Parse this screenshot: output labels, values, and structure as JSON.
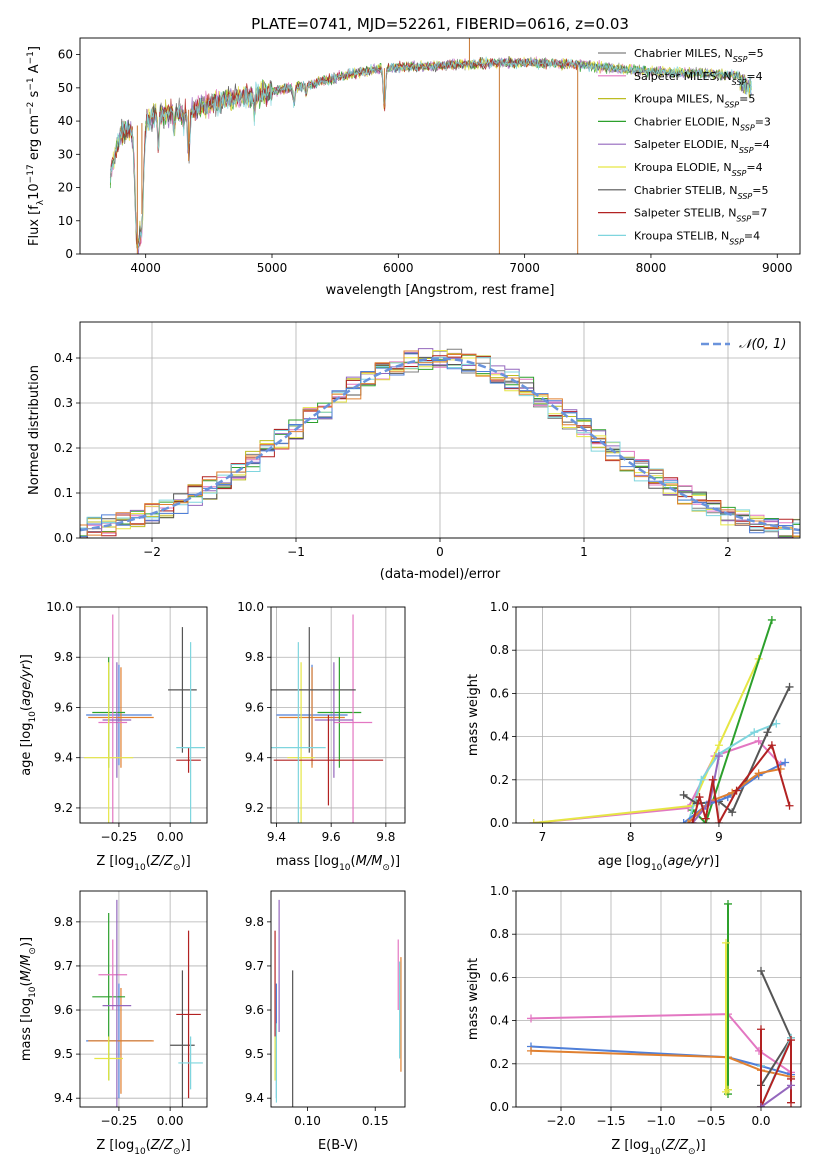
{
  "title": "PLATE=0741, MJD=52261, FIBERID=0616, z=0.03",
  "chart_data": [
    {
      "type": "line",
      "id": "spectrum",
      "title": "PLATE=0741, MJD=52261, FIBERID=0616, z=0.03",
      "xlabel": "wavelength [Angstrom, rest frame]",
      "ylabel": "Flux [fλ10⁻¹⁷ erg cm⁻² s⁻¹ A⁻¹]",
      "xlim": [
        3480,
        9180
      ],
      "ylim": [
        0,
        65
      ],
      "xticks": [
        4000,
        5000,
        6000,
        7000,
        8000,
        9000
      ],
      "yticks": [
        0,
        10,
        20,
        30,
        40,
        50,
        60
      ],
      "grid": false,
      "legend_position": "right",
      "series": [
        {
          "name": "Chabrier MILES, N_SSP=5",
          "color": "#7f7f7f"
        },
        {
          "name": "Salpeter MILES, N_SSP=4",
          "color": "#e377c2"
        },
        {
          "name": "Kroupa MILES, N_SSP=5",
          "color": "#bcbd22"
        },
        {
          "name": "Chabrier ELODIE, N_SSP=3",
          "color": "#2ca02c"
        },
        {
          "name": "Salpeter ELODIE, N_SSP=4",
          "color": "#9467bd"
        },
        {
          "name": "Kroupa ELODIE, N_SSP=4",
          "color": "#e6e645"
        },
        {
          "name": "Chabrier STELIB, N_SSP=5",
          "color": "#555555"
        },
        {
          "name": "Salpeter STELIB, N_SSP=7",
          "color": "#b22222"
        },
        {
          "name": "Kroupa STELIB, N_SSP=4",
          "color": "#7fd5de"
        }
      ],
      "continuum": {
        "x": [
          3720,
          3800,
          3900,
          4000,
          4100,
          4300,
          4500,
          4700,
          5000,
          5300,
          5600,
          5900,
          6200,
          6500,
          6800,
          7100,
          7400,
          7700,
          8000,
          8300,
          8600,
          8800
        ],
        "y": [
          24,
          36,
          38,
          40,
          42,
          43,
          45,
          47,
          49,
          51,
          54,
          56,
          56.5,
          57,
          57.5,
          57.5,
          57,
          56,
          55,
          54.5,
          54,
          53
        ]
      },
      "features": [
        {
          "x": 3934,
          "y": 0
        },
        {
          "x": 3970,
          "y": 12
        },
        {
          "x": 4340,
          "y": 28
        },
        {
          "x": 5890,
          "y": 44
        },
        {
          "x": 6800,
          "y": 0
        },
        {
          "x": 7420,
          "y": 0
        },
        {
          "x": 6563,
          "y": 65
        }
      ]
    },
    {
      "type": "histogram",
      "id": "residuals",
      "xlabel": "(data-model)/error",
      "ylabel": "Normed distribution",
      "xlim": [
        -2.5,
        2.5
      ],
      "ylim": [
        0,
        0.48
      ],
      "xticks": [
        -2,
        -1,
        0,
        1,
        2
      ],
      "yticks": [
        0.0,
        0.1,
        0.2,
        0.3,
        0.4
      ],
      "grid": true,
      "legend_position": "top-right",
      "reference_curve": {
        "name": "𝒩(0, 1)",
        "mean": 0,
        "sigma": 1,
        "color": "#6a93dc",
        "style": "dashed"
      },
      "bin_width": 0.1
    },
    {
      "type": "scatter",
      "id": "age-vs-Z",
      "xlabel": "Z [log10(Z/Z⊙)]",
      "ylabel": "age  [log10(age/yr)]",
      "xlim": [
        -0.44,
        0.18
      ],
      "ylim": [
        9.14,
        10.0
      ],
      "xticks": [
        -0.25,
        0.0
      ],
      "yticks": [
        9.2,
        9.4,
        9.6,
        9.8,
        10.0
      ],
      "grid": true,
      "points": [
        {
          "x": -0.25,
          "y": 9.57,
          "xerr": 0.16,
          "yerr": 0.2,
          "color": "#4f7fd8"
        },
        {
          "x": -0.24,
          "y": 9.56,
          "xerr": 0.16,
          "yerr": 0.2,
          "color": "#e08030"
        },
        {
          "x": -0.3,
          "y": 9.58,
          "xerr": 0.08,
          "yerr": 0.22,
          "color": "#2ca02c"
        },
        {
          "x": -0.28,
          "y": 9.54,
          "xerr": 0.07,
          "yerr": 0.43,
          "color": "#e377c2"
        },
        {
          "x": -0.26,
          "y": 9.55,
          "xerr": 0.07,
          "yerr": 0.23,
          "color": "#9467bd"
        },
        {
          "x": -0.3,
          "y": 9.4,
          "xerr": 0.12,
          "yerr": 0.38,
          "color": "#e6e645"
        },
        {
          "x": 0.06,
          "y": 9.67,
          "xerr": 0.07,
          "yerr": 0.25,
          "color": "#555555"
        },
        {
          "x": 0.09,
          "y": 9.39,
          "xerr": 0.06,
          "yerr": 0.05,
          "color": "#b22222"
        },
        {
          "x": 0.1,
          "y": 9.44,
          "xerr": 0.07,
          "yerr": 0.42,
          "color": "#7fd5de"
        }
      ]
    },
    {
      "type": "scatter",
      "id": "age-vs-mass",
      "xlabel": "mass [log10(M/M⊙)]",
      "ylabel": "",
      "xlim": [
        9.38,
        9.87
      ],
      "ylim": [
        9.14,
        10.0
      ],
      "xticks": [
        9.4,
        9.6,
        9.8
      ],
      "yticks": [
        9.2,
        9.4,
        9.6,
        9.8,
        10.0
      ],
      "grid": true,
      "points": [
        {
          "x": 9.53,
          "y": 9.57,
          "xerr": 0.13,
          "yerr": 0.2,
          "color": "#4f7fd8"
        },
        {
          "x": 9.53,
          "y": 9.56,
          "xerr": 0.12,
          "yerr": 0.2,
          "color": "#e08030"
        },
        {
          "x": 9.63,
          "y": 9.58,
          "xerr": 0.08,
          "yerr": 0.22,
          "color": "#2ca02c"
        },
        {
          "x": 9.68,
          "y": 9.54,
          "xerr": 0.07,
          "yerr": 0.43,
          "color": "#e377c2"
        },
        {
          "x": 9.61,
          "y": 9.55,
          "xerr": 0.07,
          "yerr": 0.23,
          "color": "#9467bd"
        },
        {
          "x": 9.49,
          "y": 9.4,
          "xerr": 0.05,
          "yerr": 0.38,
          "color": "#e6e645"
        },
        {
          "x": 9.52,
          "y": 9.67,
          "xerr": 0.17,
          "yerr": 0.25,
          "color": "#555555"
        },
        {
          "x": 9.59,
          "y": 9.39,
          "xerr": 0.2,
          "yerr": 0.18,
          "color": "#b22222"
        },
        {
          "x": 9.48,
          "y": 9.44,
          "xerr": 0.1,
          "yerr": 0.42,
          "color": "#7fd5de"
        }
      ]
    },
    {
      "type": "line",
      "id": "weight-vs-age",
      "xlabel": "age  [log10(age/yr)]",
      "ylabel": "mass weight",
      "xlim": [
        6.7,
        9.93
      ],
      "ylim": [
        0,
        1.0
      ],
      "xticks": [
        7,
        8,
        9
      ],
      "yticks": [
        0.0,
        0.2,
        0.4,
        0.6,
        0.8,
        1.0
      ],
      "grid": true,
      "series": [
        {
          "color": "#e377c2",
          "x": [
            6.9,
            8.65,
            8.95,
            9.45,
            9.7
          ],
          "y": [
            0.0,
            0.07,
            0.31,
            0.38,
            0.27
          ]
        },
        {
          "color": "#e6e645",
          "x": [
            6.9,
            8.7,
            9.0,
            9.45
          ],
          "y": [
            0.0,
            0.08,
            0.36,
            0.76
          ]
        },
        {
          "color": "#2ca02c",
          "x": [
            8.7,
            8.85,
            9.6
          ],
          "y": [
            0.06,
            0.0,
            0.94
          ]
        },
        {
          "color": "#7fd5de",
          "x": [
            8.65,
            8.8,
            9.0,
            9.4,
            9.65
          ],
          "y": [
            0.0,
            0.2,
            0.32,
            0.42,
            0.46
          ]
        },
        {
          "color": "#555555",
          "x": [
            8.6,
            8.75,
            9.0,
            9.15,
            9.55,
            9.8
          ],
          "y": [
            0.13,
            0.09,
            0.1,
            0.05,
            0.42,
            0.63
          ]
        },
        {
          "color": "#4f7fd8",
          "x": [
            8.6,
            8.85,
            9.1,
            9.45,
            9.75
          ],
          "y": [
            0.0,
            0.08,
            0.12,
            0.22,
            0.28
          ]
        },
        {
          "color": "#e08030",
          "x": [
            8.65,
            8.9,
            9.15,
            9.45,
            9.7
          ],
          "y": [
            0.0,
            0.1,
            0.14,
            0.23,
            0.25
          ]
        },
        {
          "color": "#9467bd",
          "x": [
            8.7,
            8.9,
            9.0
          ],
          "y": [
            0.0,
            0.1,
            0.31
          ]
        },
        {
          "color": "#b22222",
          "x": [
            8.7,
            8.78,
            8.85,
            8.93,
            9.0,
            9.2,
            9.6,
            9.8
          ],
          "y": [
            0.0,
            0.12,
            0.02,
            0.2,
            0.0,
            0.15,
            0.36,
            0.08
          ]
        }
      ]
    },
    {
      "type": "scatter",
      "id": "mass-vs-Z",
      "xlabel": "Z [log10(Z/Z⊙)]",
      "ylabel": "mass [log10(M/M⊙)]",
      "xlim": [
        -0.44,
        0.18
      ],
      "ylim": [
        9.38,
        9.87
      ],
      "xticks": [
        -0.25,
        0.0
      ],
      "yticks": [
        9.4,
        9.5,
        9.6,
        9.7,
        9.8
      ],
      "grid": true,
      "points": [
        {
          "x": -0.25,
          "y": 9.53,
          "xerr": 0.16,
          "yerr": 0.13,
          "color": "#4f7fd8"
        },
        {
          "x": -0.24,
          "y": 9.53,
          "xerr": 0.16,
          "yerr": 0.12,
          "color": "#e08030"
        },
        {
          "x": -0.3,
          "y": 9.63,
          "xerr": 0.08,
          "yerr": 0.19,
          "color": "#2ca02c"
        },
        {
          "x": -0.28,
          "y": 9.68,
          "xerr": 0.07,
          "yerr": 0.08,
          "color": "#e377c2"
        },
        {
          "x": -0.26,
          "y": 9.61,
          "xerr": 0.07,
          "yerr": 0.24,
          "color": "#9467bd"
        },
        {
          "x": -0.3,
          "y": 9.49,
          "xerr": 0.07,
          "yerr": 0.05,
          "color": "#e6e645"
        },
        {
          "x": 0.06,
          "y": 9.52,
          "xerr": 0.06,
          "yerr": 0.17,
          "color": "#555555"
        },
        {
          "x": 0.09,
          "y": 9.59,
          "xerr": 0.06,
          "yerr": 0.19,
          "color": "#b22222"
        },
        {
          "x": 0.1,
          "y": 9.48,
          "xerr": 0.06,
          "yerr": 0.06,
          "color": "#7fd5de"
        }
      ]
    },
    {
      "type": "scatter",
      "id": "mass-vs-EBV",
      "xlabel": "E(B-V)",
      "ylabel": "",
      "xlim": [
        0.073,
        0.172
      ],
      "ylim": [
        9.38,
        9.87
      ],
      "xticks": [
        0.1,
        0.15
      ],
      "yticks": [
        9.4,
        9.5,
        9.6,
        9.7,
        9.8
      ],
      "grid": false,
      "points": [
        {
          "x": 0.077,
          "y": 9.53,
          "yerr": 0.13,
          "color": "#4f7fd8"
        },
        {
          "x": 0.076,
          "y": 9.66,
          "yerr": 0.12,
          "color": "#b22222"
        },
        {
          "x": 0.079,
          "y": 9.7,
          "yerr": 0.15,
          "color": "#9467bd"
        },
        {
          "x": 0.076,
          "y": 9.49,
          "yerr": 0.05,
          "color": "#e6e645"
        },
        {
          "x": 0.077,
          "y": 9.48,
          "yerr": 0.09,
          "color": "#7fd5de"
        },
        {
          "x": 0.089,
          "y": 9.52,
          "yerr": 0.17,
          "color": "#555555"
        },
        {
          "x": 0.167,
          "y": 9.68,
          "yerr": 0.08,
          "color": "#e377c2"
        },
        {
          "x": 0.169,
          "y": 9.59,
          "yerr": 0.13,
          "color": "#e08030"
        },
        {
          "x": 0.168,
          "y": 9.6,
          "yerr": 0.11,
          "color": "#7fd5de"
        }
      ]
    },
    {
      "type": "line",
      "id": "weight-vs-Z",
      "xlabel": "Z [log10(Z/Z⊙)]",
      "ylabel": "mass weight",
      "xlim": [
        -2.45,
        0.4
      ],
      "ylim": [
        0,
        1.0
      ],
      "xticks": [
        -2.0,
        -1.5,
        -1.0,
        -0.5,
        0.0
      ],
      "yticks": [
        0.0,
        0.2,
        0.4,
        0.6,
        0.8,
        1.0
      ],
      "grid": true,
      "series": [
        {
          "color": "#e377c2",
          "x": [
            -2.3,
            -0.33,
            -0.02,
            0.3
          ],
          "y": [
            0.41,
            0.43,
            0.26,
            0.16
          ]
        },
        {
          "color": "#4f7fd8",
          "x": [
            -2.3,
            -0.33,
            0.0,
            0.3
          ],
          "y": [
            0.28,
            0.23,
            0.19,
            0.15
          ]
        },
        {
          "color": "#e08030",
          "x": [
            -2.3,
            -0.33,
            0.0,
            0.3
          ],
          "y": [
            0.26,
            0.23,
            0.17,
            0.14
          ]
        },
        {
          "color": "#2ca02c",
          "x": [
            -0.33,
            -0.33,
            -0.33
          ],
          "y": [
            0.94,
            0.06,
            0.08
          ]
        },
        {
          "color": "#e6e645",
          "x": [
            -0.35,
            -0.35,
            -0.33
          ],
          "y": [
            0.76,
            0.07,
            0.08
          ]
        },
        {
          "color": "#555555",
          "x": [
            0.0,
            0.3,
            0.0,
            0.0
          ],
          "y": [
            0.63,
            0.32,
            0.1,
            0.0
          ]
        },
        {
          "color": "#7fd5de",
          "x": [
            0.0,
            0.0,
            0.3
          ],
          "y": [
            0.19,
            0.0,
            0.32
          ]
        },
        {
          "color": "#b22222",
          "x": [
            0.0,
            0.0,
            0.3,
            0.3,
            0.3
          ],
          "y": [
            0.36,
            0.0,
            0.31,
            0.02,
            0.13
          ]
        },
        {
          "color": "#9467bd",
          "x": [
            0.0,
            0.3
          ],
          "y": [
            0.0,
            0.1
          ]
        }
      ]
    }
  ]
}
